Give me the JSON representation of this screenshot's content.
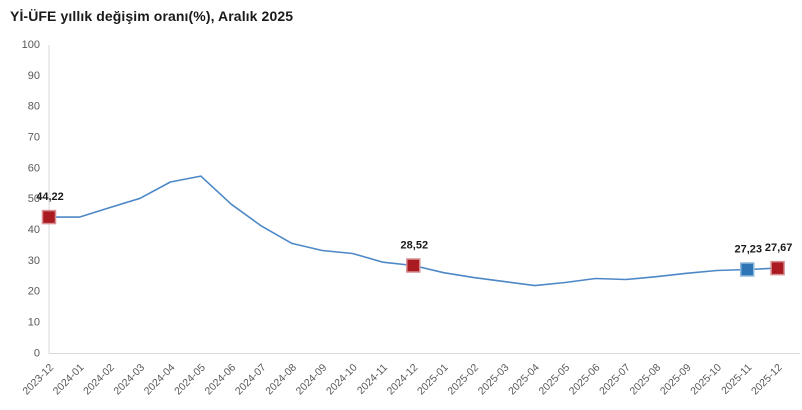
{
  "title": "Yİ-ÜFE yıllık değişim oranı(%), Aralık 2025",
  "colors": {
    "line": "#4d88c6",
    "axis": "#d9d9d9",
    "tick_label": "#595959",
    "data_label": "#1a1a1a",
    "marker_red": "#a91b21",
    "marker_red_stroke": "#d78f93",
    "marker_blue": "#2e75b6",
    "marker_blue_stroke": "#8fb8dc"
  },
  "chart_data": {
    "type": "line",
    "title": "Yİ-ÜFE yıllık değişim oranı(%), Aralık 2025",
    "xlabel": "",
    "ylabel": "",
    "ylim": [
      0,
      100
    ],
    "y_ticks": [
      0,
      10,
      20,
      30,
      40,
      50,
      60,
      70,
      80,
      90,
      100
    ],
    "grid": false,
    "legend": false,
    "categories": [
      "2023-12",
      "2024-01",
      "2024-02",
      "2024-03",
      "2024-04",
      "2024-05",
      "2024-06",
      "2024-07",
      "2024-08",
      "2024-09",
      "2024-10",
      "2024-11",
      "2024-12",
      "2025-01",
      "2025-02",
      "2025-03",
      "2025-04",
      "2025-05",
      "2025-06",
      "2025-07",
      "2025-08",
      "2025-09",
      "2025-10",
      "2025-11",
      "2025-12"
    ],
    "values": [
      44.22,
      44.2,
      47.3,
      50.3,
      55.6,
      57.5,
      48.4,
      41.3,
      35.7,
      33.4,
      32.4,
      29.6,
      28.52,
      26.2,
      24.6,
      23.3,
      22.0,
      23.0,
      24.3,
      24.0,
      24.9,
      26.0,
      26.9,
      27.23,
      27.67
    ],
    "annotations": [
      {
        "index": 0,
        "label": "44,22",
        "marker": "red"
      },
      {
        "index": 12,
        "label": "28,52",
        "marker": "red"
      },
      {
        "index": 23,
        "label": "27,23",
        "marker": "blue"
      },
      {
        "index": 24,
        "label": "27,67",
        "marker": "red"
      }
    ]
  }
}
